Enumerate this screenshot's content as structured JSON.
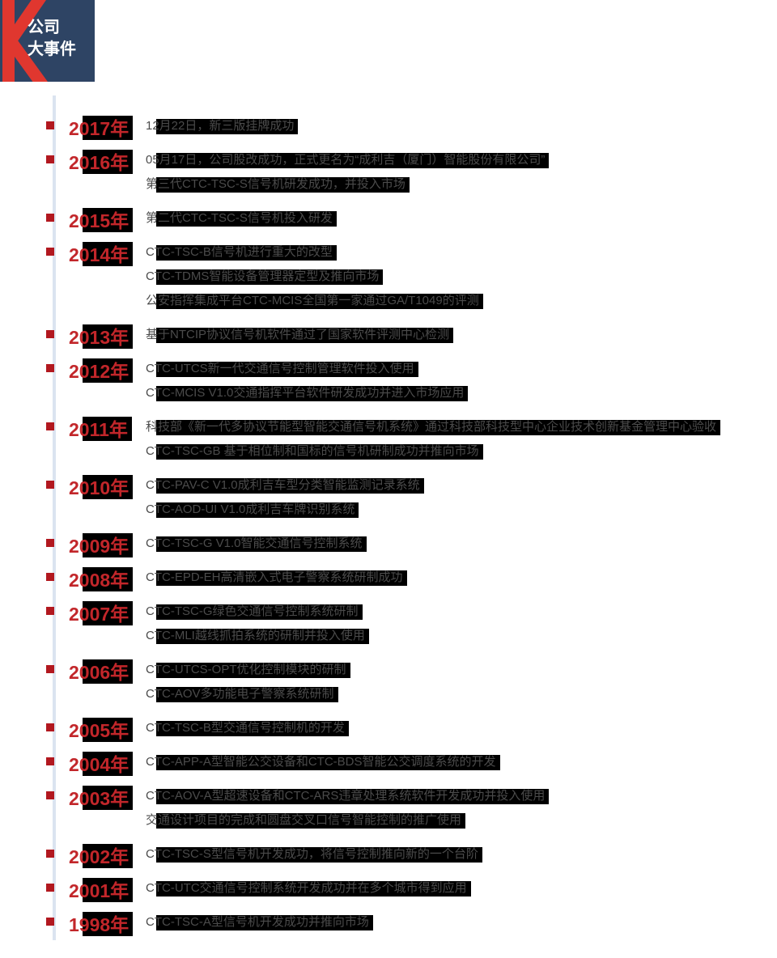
{
  "header": {
    "badge_line1": "公司",
    "badge_line2": "大事件"
  },
  "colors": {
    "badge_navy": "#2e4464",
    "badge_red": "#e0372f",
    "year_red": "#c2262a",
    "bullet_red": "#b2181f",
    "axis_blue": "#dbe4f0",
    "highlight_black": "#000000",
    "text_gray": "#4b4b4b"
  },
  "timeline": {
    "entries": [
      {
        "year": "2017年",
        "items": [
          "12月22日，新三版挂牌成功"
        ]
      },
      {
        "year": "2016年",
        "items": [
          "05月17日，公司股改成功，正式更名为“成利吉（厦门）智能股份有限公司”",
          "第三代CTC-TSC-S信号机研发成功，并投入市场"
        ]
      },
      {
        "year": "2015年",
        "items": [
          "第二代CTC-TSC-S信号机投入研发"
        ]
      },
      {
        "year": "2014年",
        "items": [
          "CTC-TSC-B信号机进行重大的改型",
          "CTC-TDMS智能设备管理器定型及推向市场",
          "公安指挥集成平台CTC-MCIS全国第一家通过GA/T1049的评测"
        ]
      },
      {
        "year": "2013年",
        "items": [
          "基于NTCIP协议信号机软件通过了国家软件评测中心检测"
        ]
      },
      {
        "year": "2012年",
        "items": [
          "CTC-UTCS新一代交通信号控制管理软件投入使用",
          "CTC-MCIS V1.0交通指挥平台软件研发成功并进入市场应用"
        ]
      },
      {
        "year": "2011年",
        "items": [
          "科技部《新一代多协议节能型智能交通信号机系统》通过科技部科技型中心企业技术创新基金管理中心验收",
          "CTC-TSC-GB 基于相位制和国标的信号机研制成功并推向市场"
        ]
      },
      {
        "year": "2010年",
        "items": [
          "CTC-PAV-C V1.0成利吉车型分类智能监测记录系统",
          "CTC-AOD-UI V1.0成利吉车牌识别系统"
        ]
      },
      {
        "year": "2009年",
        "items": [
          "CTC-TSC-G V1.0智能交通信号控制系统"
        ]
      },
      {
        "year": "2008年",
        "items": [
          "CTC-EPD-EH高清嵌入式电子警察系统研制成功"
        ]
      },
      {
        "year": "2007年",
        "items": [
          "CTC-TSC-G绿色交通信号控制系统研制",
          "CTC-MLI越线抓拍系统的研制并投入使用"
        ]
      },
      {
        "year": "2006年",
        "items": [
          "CTC-UTCS-OPT优化控制模块的研制",
          "CTC-AOV多功能电子警察系统研制"
        ]
      },
      {
        "year": "2005年",
        "items": [
          "CTC-TSC-B型交通信号控制机的开发"
        ]
      },
      {
        "year": "2004年",
        "items": [
          "CTC-APP-A型智能公交设备和CTC-BDS智能公交调度系统的开发"
        ]
      },
      {
        "year": "2003年",
        "items": [
          "CTC-AOV-A型超速设备和CTC-ARS违章处理系统软件开发成功并投入使用",
          "交通设计项目的完成和圆盘交叉口信号智能控制的推广使用"
        ]
      },
      {
        "year": "2002年",
        "items": [
          "CTC-TSC-S型信号机开发成功，将信号控制推向新的一个台阶"
        ]
      },
      {
        "year": "2001年",
        "items": [
          "CTC-UTC交通信号控制系统开发成功并在多个城市得到应用"
        ]
      },
      {
        "year": "1998年",
        "items": [
          "CTC-TSC-A型信号机开发成功并推向市场"
        ]
      }
    ]
  }
}
